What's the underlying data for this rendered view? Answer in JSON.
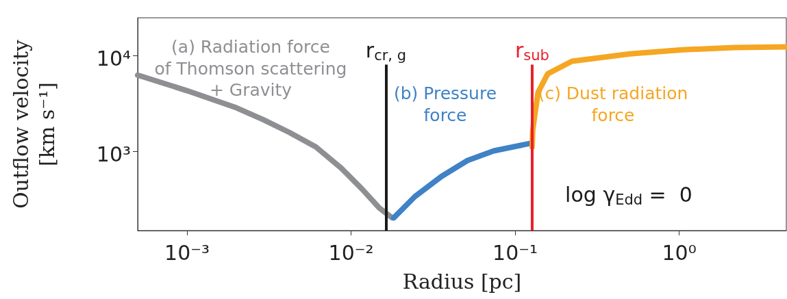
{
  "chart_data": {
    "type": "line",
    "xlabel": "Radius [pc]",
    "ylabel": "Outflow velocity\n[km s⁻¹]",
    "log": "xy",
    "grid": false,
    "marker": "none",
    "line_style": "solid",
    "xlim": [
      0.0005,
      4.5
    ],
    "ylim": [
      150,
      25000
    ],
    "xticks": [
      {
        "value": 0.001,
        "label": "10⁻³"
      },
      {
        "value": 0.01,
        "label": "10⁻²"
      },
      {
        "value": 0.1,
        "label": "10⁻¹"
      },
      {
        "value": 1,
        "label": "10⁰"
      }
    ],
    "yticks": [
      {
        "value": 1000,
        "label": "10³"
      },
      {
        "value": 10000,
        "label": "10⁴"
      }
    ],
    "series": [
      {
        "color": "#8e8f93",
        "x": [
          0.0005,
          0.001,
          0.002,
          0.0029,
          0.0042,
          0.0061,
          0.0087,
          0.0117,
          0.0148,
          0.0178
        ],
        "values": [
          6300,
          4330,
          2870,
          2170,
          1590,
          1120,
          675,
          405,
          260,
          204
        ]
      },
      {
        "color": "#3f82c6",
        "x": [
          0.0182,
          0.0245,
          0.0355,
          0.0513,
          0.0741,
          0.126
        ],
        "values": [
          204,
          340,
          550,
          810,
          1020,
          1230
        ]
      },
      {
        "color": "#f5a623",
        "x": [
          0.127,
          0.128,
          0.131,
          0.138,
          0.158,
          0.222,
          0.5,
          1.05,
          2.16,
          4.5
        ],
        "values": [
          1120,
          1670,
          2240,
          4170,
          6500,
          8800,
          10500,
          11600,
          12200,
          12400
        ]
      }
    ],
    "ref_lines": [
      {
        "axis": "x",
        "value": 0.0163,
        "label": "r$_{cr, g}$",
        "color": "#1a1a1a"
      },
      {
        "axis": "x",
        "value": 0.127,
        "label": "r$_{sub}$",
        "color": "#e8202a"
      }
    ],
    "annotations": [
      "(a) Radiation force\nof Thomson scattering\n+ Gravity",
      "(b) Pressure\nforce",
      "(c) Dust radiation\nforce",
      "log γ$_{Edd}$ =  0"
    ]
  }
}
